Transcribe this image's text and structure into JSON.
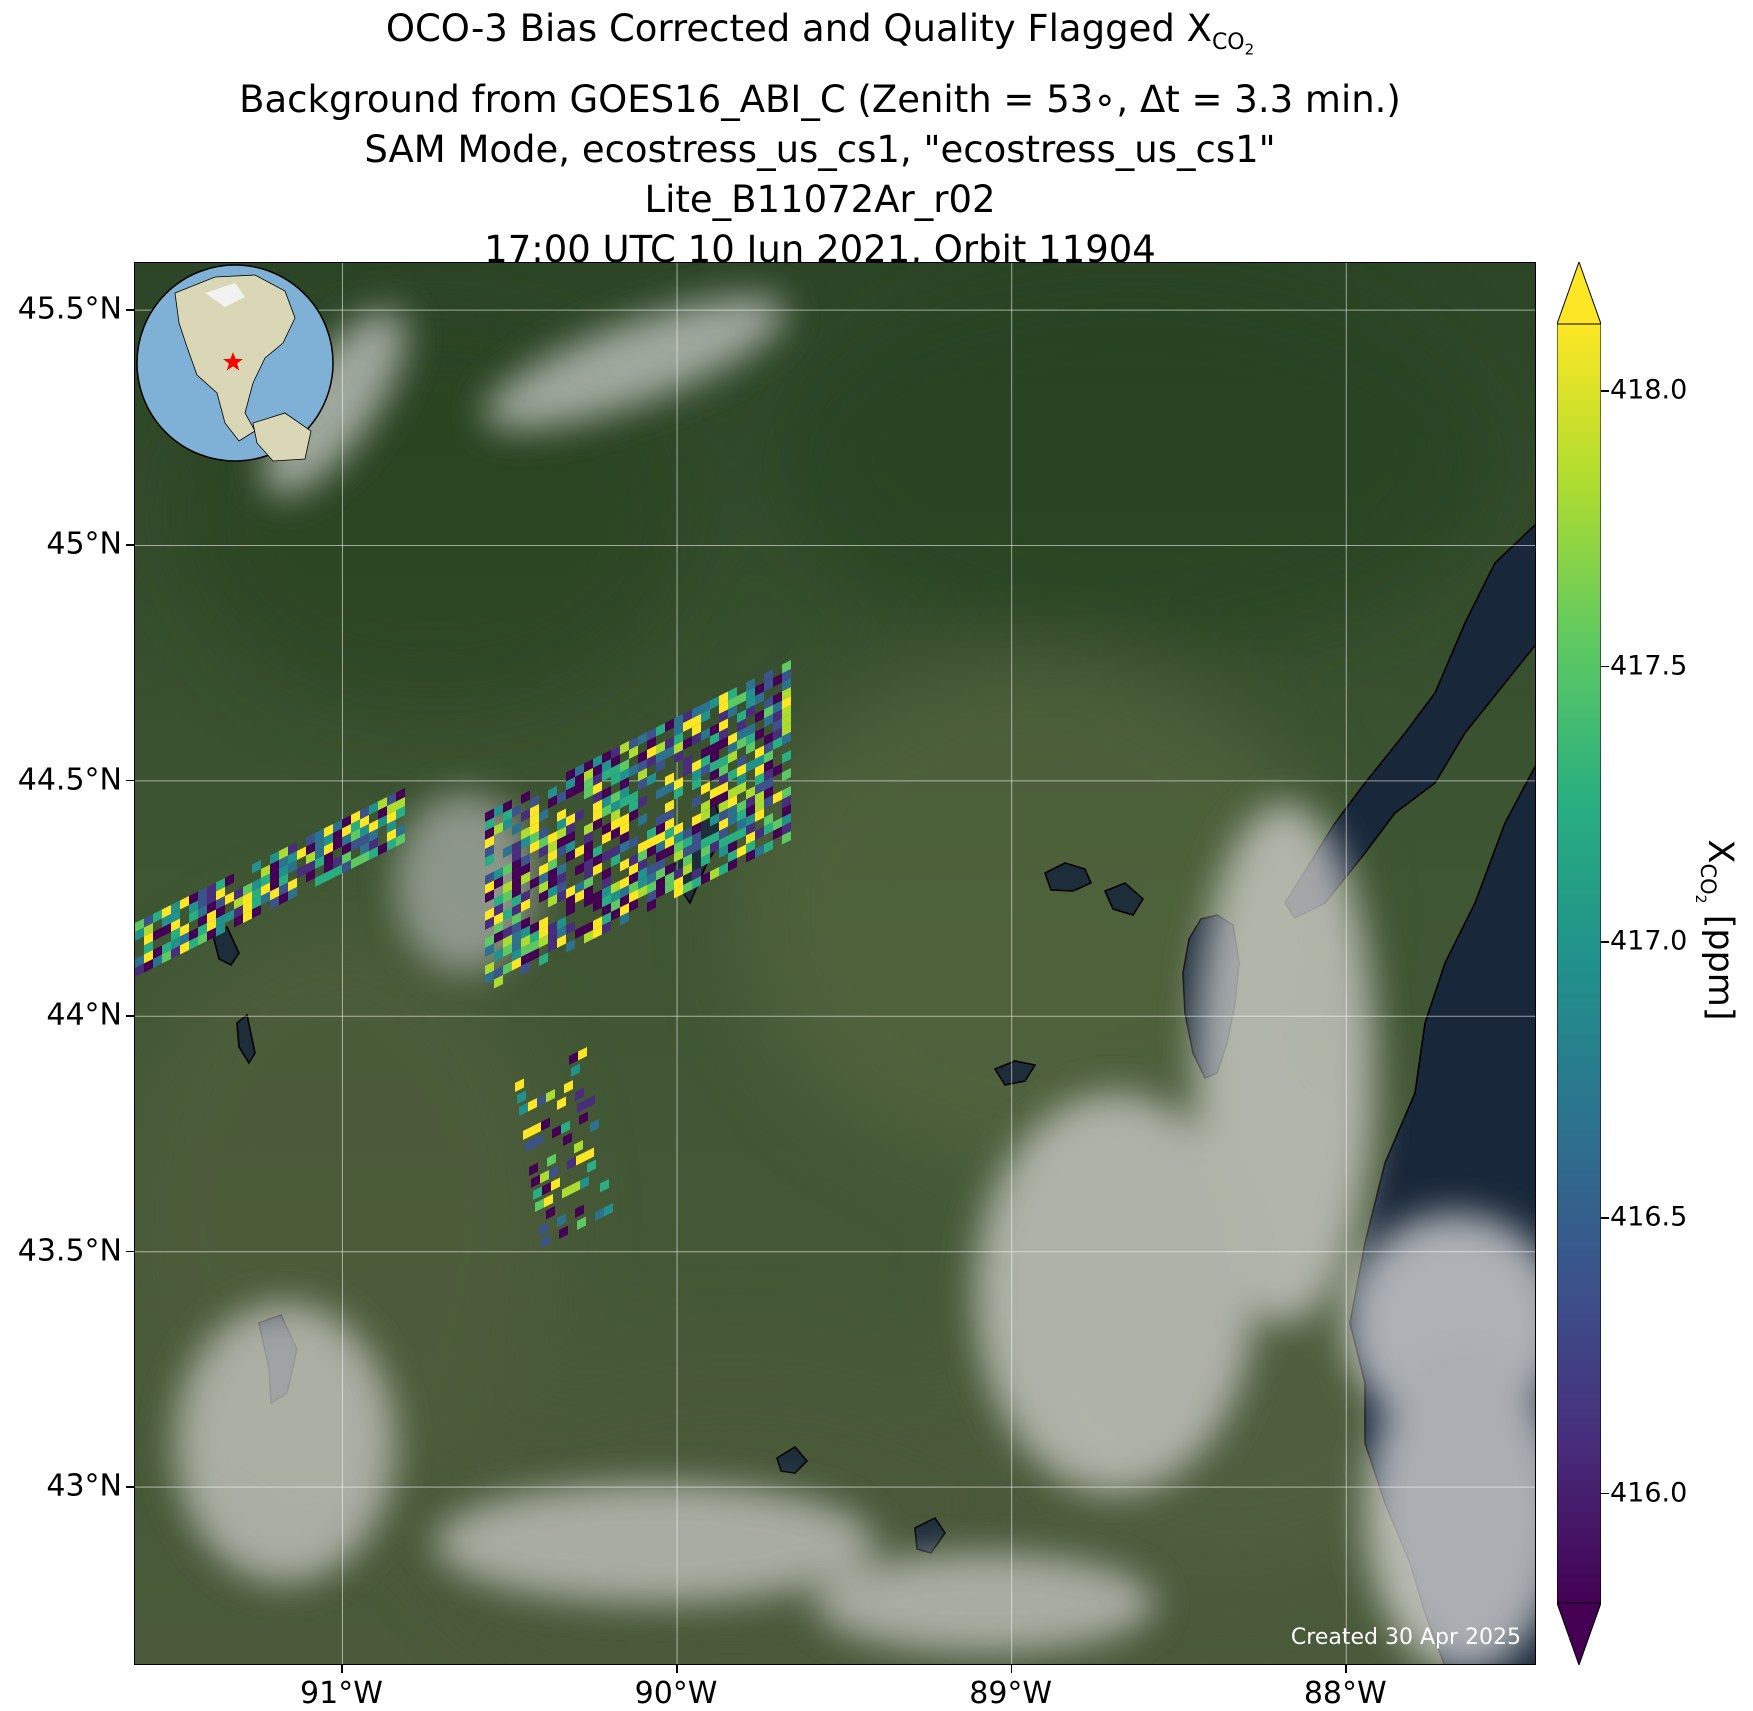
{
  "title": {
    "line1_prefix": "OCO-3 Bias Corrected and Quality Flagged X",
    "line1_sub": "CO",
    "line1_subsub": "2",
    "line2": "Background from GOES16_ABI_C (Zenith = 53∘, Δt =  3.3 min.)",
    "line3": "SAM Mode, ecostress_us_cs1, \"ecostress_us_cs1\"",
    "line4": "Lite_B11072Ar_r02",
    "line5": "17:00 UTC 10 Jun 2021, Orbit 11904"
  },
  "map": {
    "lon_range": [
      -91.62,
      -87.43
    ],
    "lat_range": [
      42.62,
      45.6
    ],
    "lat_ticks": [
      {
        "value": 45.5,
        "label": "45.5°N"
      },
      {
        "value": 45.0,
        "label": "45°N"
      },
      {
        "value": 44.5,
        "label": "44.5°N"
      },
      {
        "value": 44.0,
        "label": "44°N"
      },
      {
        "value": 43.5,
        "label": "43.5°N"
      },
      {
        "value": 43.0,
        "label": "43°N"
      }
    ],
    "lon_ticks": [
      {
        "value": -91.0,
        "label": "91°W"
      },
      {
        "value": -90.0,
        "label": "90°W"
      },
      {
        "value": -89.0,
        "label": "89°W"
      },
      {
        "value": -88.0,
        "label": "88°W"
      }
    ],
    "gridlines": true,
    "created_note": "Created 30 Apr 2025",
    "inset_globe": {
      "marker": "red star",
      "marker_location": "Wisconsin, USA"
    },
    "colors": {
      "land": "#3d5430",
      "forest": "#2a4326",
      "water": "#1d2d3d",
      "cloud": "#d8d8d8",
      "grid": "#ffffff",
      "coast": "#000000"
    }
  },
  "colorbar": {
    "label_prefix": "X",
    "label_sub": "CO",
    "label_subsub": "2",
    "label_suffix": " [ppm]",
    "vmin": 415.8,
    "vmax": 418.12,
    "extend": "both",
    "colormap": "viridis",
    "ticks": [
      {
        "value": 418.0,
        "label": "418.0"
      },
      {
        "value": 417.5,
        "label": "417.5"
      },
      {
        "value": 417.0,
        "label": "417.0"
      },
      {
        "value": 416.5,
        "label": "416.5"
      },
      {
        "value": 416.0,
        "label": "416.0"
      }
    ]
  }
}
